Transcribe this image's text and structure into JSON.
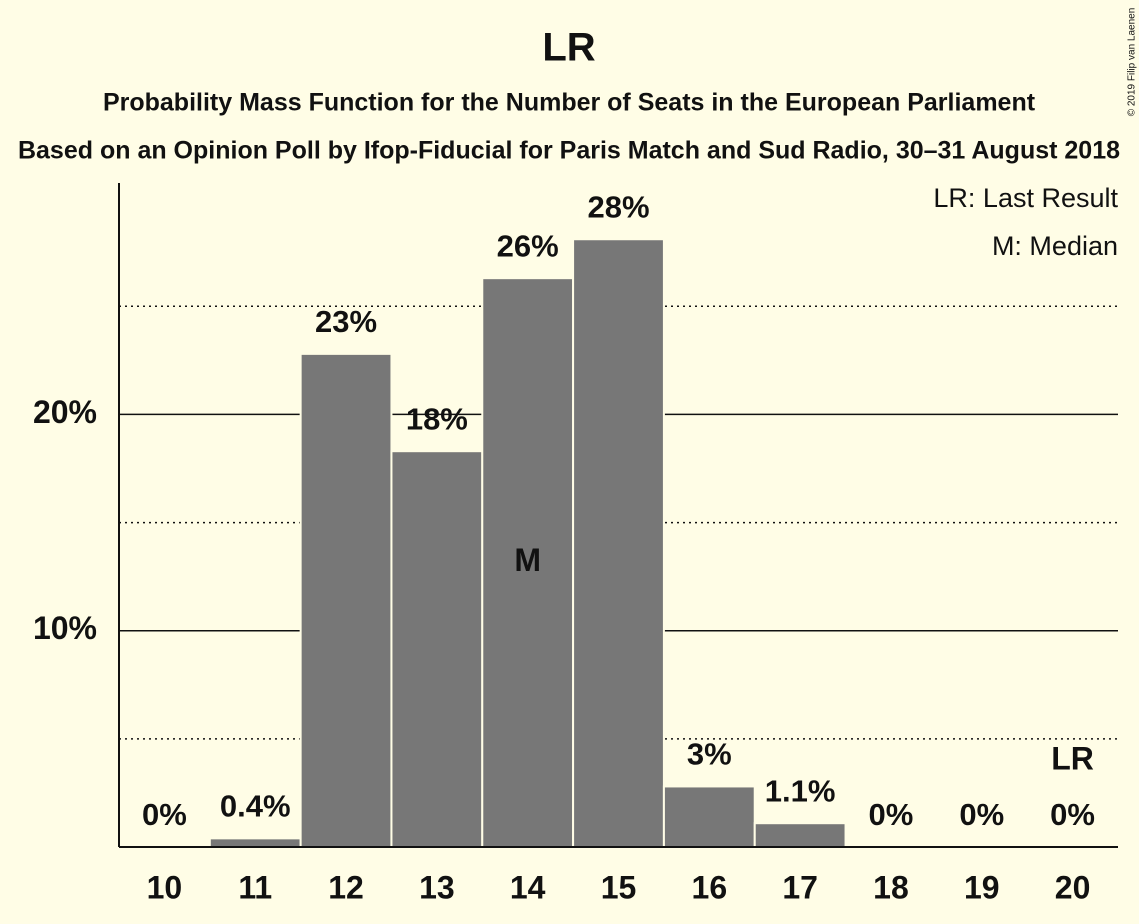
{
  "chart_data": {
    "type": "bar",
    "title": "LR",
    "subtitle": "Probability Mass Function for the Number of Seats in the European Parliament",
    "subtitle2": "Based on an Opinion Poll by Ifop-Fiducial for Paris Match and Sud Radio, 30–31 August 2018",
    "copyright": "© 2019 Filip van Laenen",
    "categories": [
      "10",
      "11",
      "12",
      "13",
      "14",
      "15",
      "16",
      "17",
      "18",
      "19",
      "20"
    ],
    "values": [
      0,
      0.4,
      22.8,
      18.3,
      26.3,
      28.1,
      2.8,
      1.1,
      0,
      0,
      0
    ],
    "value_labels": [
      "0%",
      "0.4%",
      "23%",
      "18%",
      "26%",
      "28%",
      "3%",
      "1.1%",
      "0%",
      "0%",
      "0%"
    ],
    "color": "#777777",
    "ylim": [
      0,
      30.7
    ],
    "yticks": [
      {
        "value": 10,
        "label": "10%"
      },
      {
        "value": 20,
        "label": "20%"
      }
    ],
    "minor_yticks": [
      5,
      15,
      25
    ],
    "grid": true,
    "annotations": [
      {
        "text": "M",
        "x": "14",
        "position": "inside"
      },
      {
        "text": "LR",
        "x": "20",
        "position": "above"
      }
    ],
    "legend_texts": [
      "LR: Last Result",
      "M: Median"
    ],
    "legend_position": "top-right"
  }
}
